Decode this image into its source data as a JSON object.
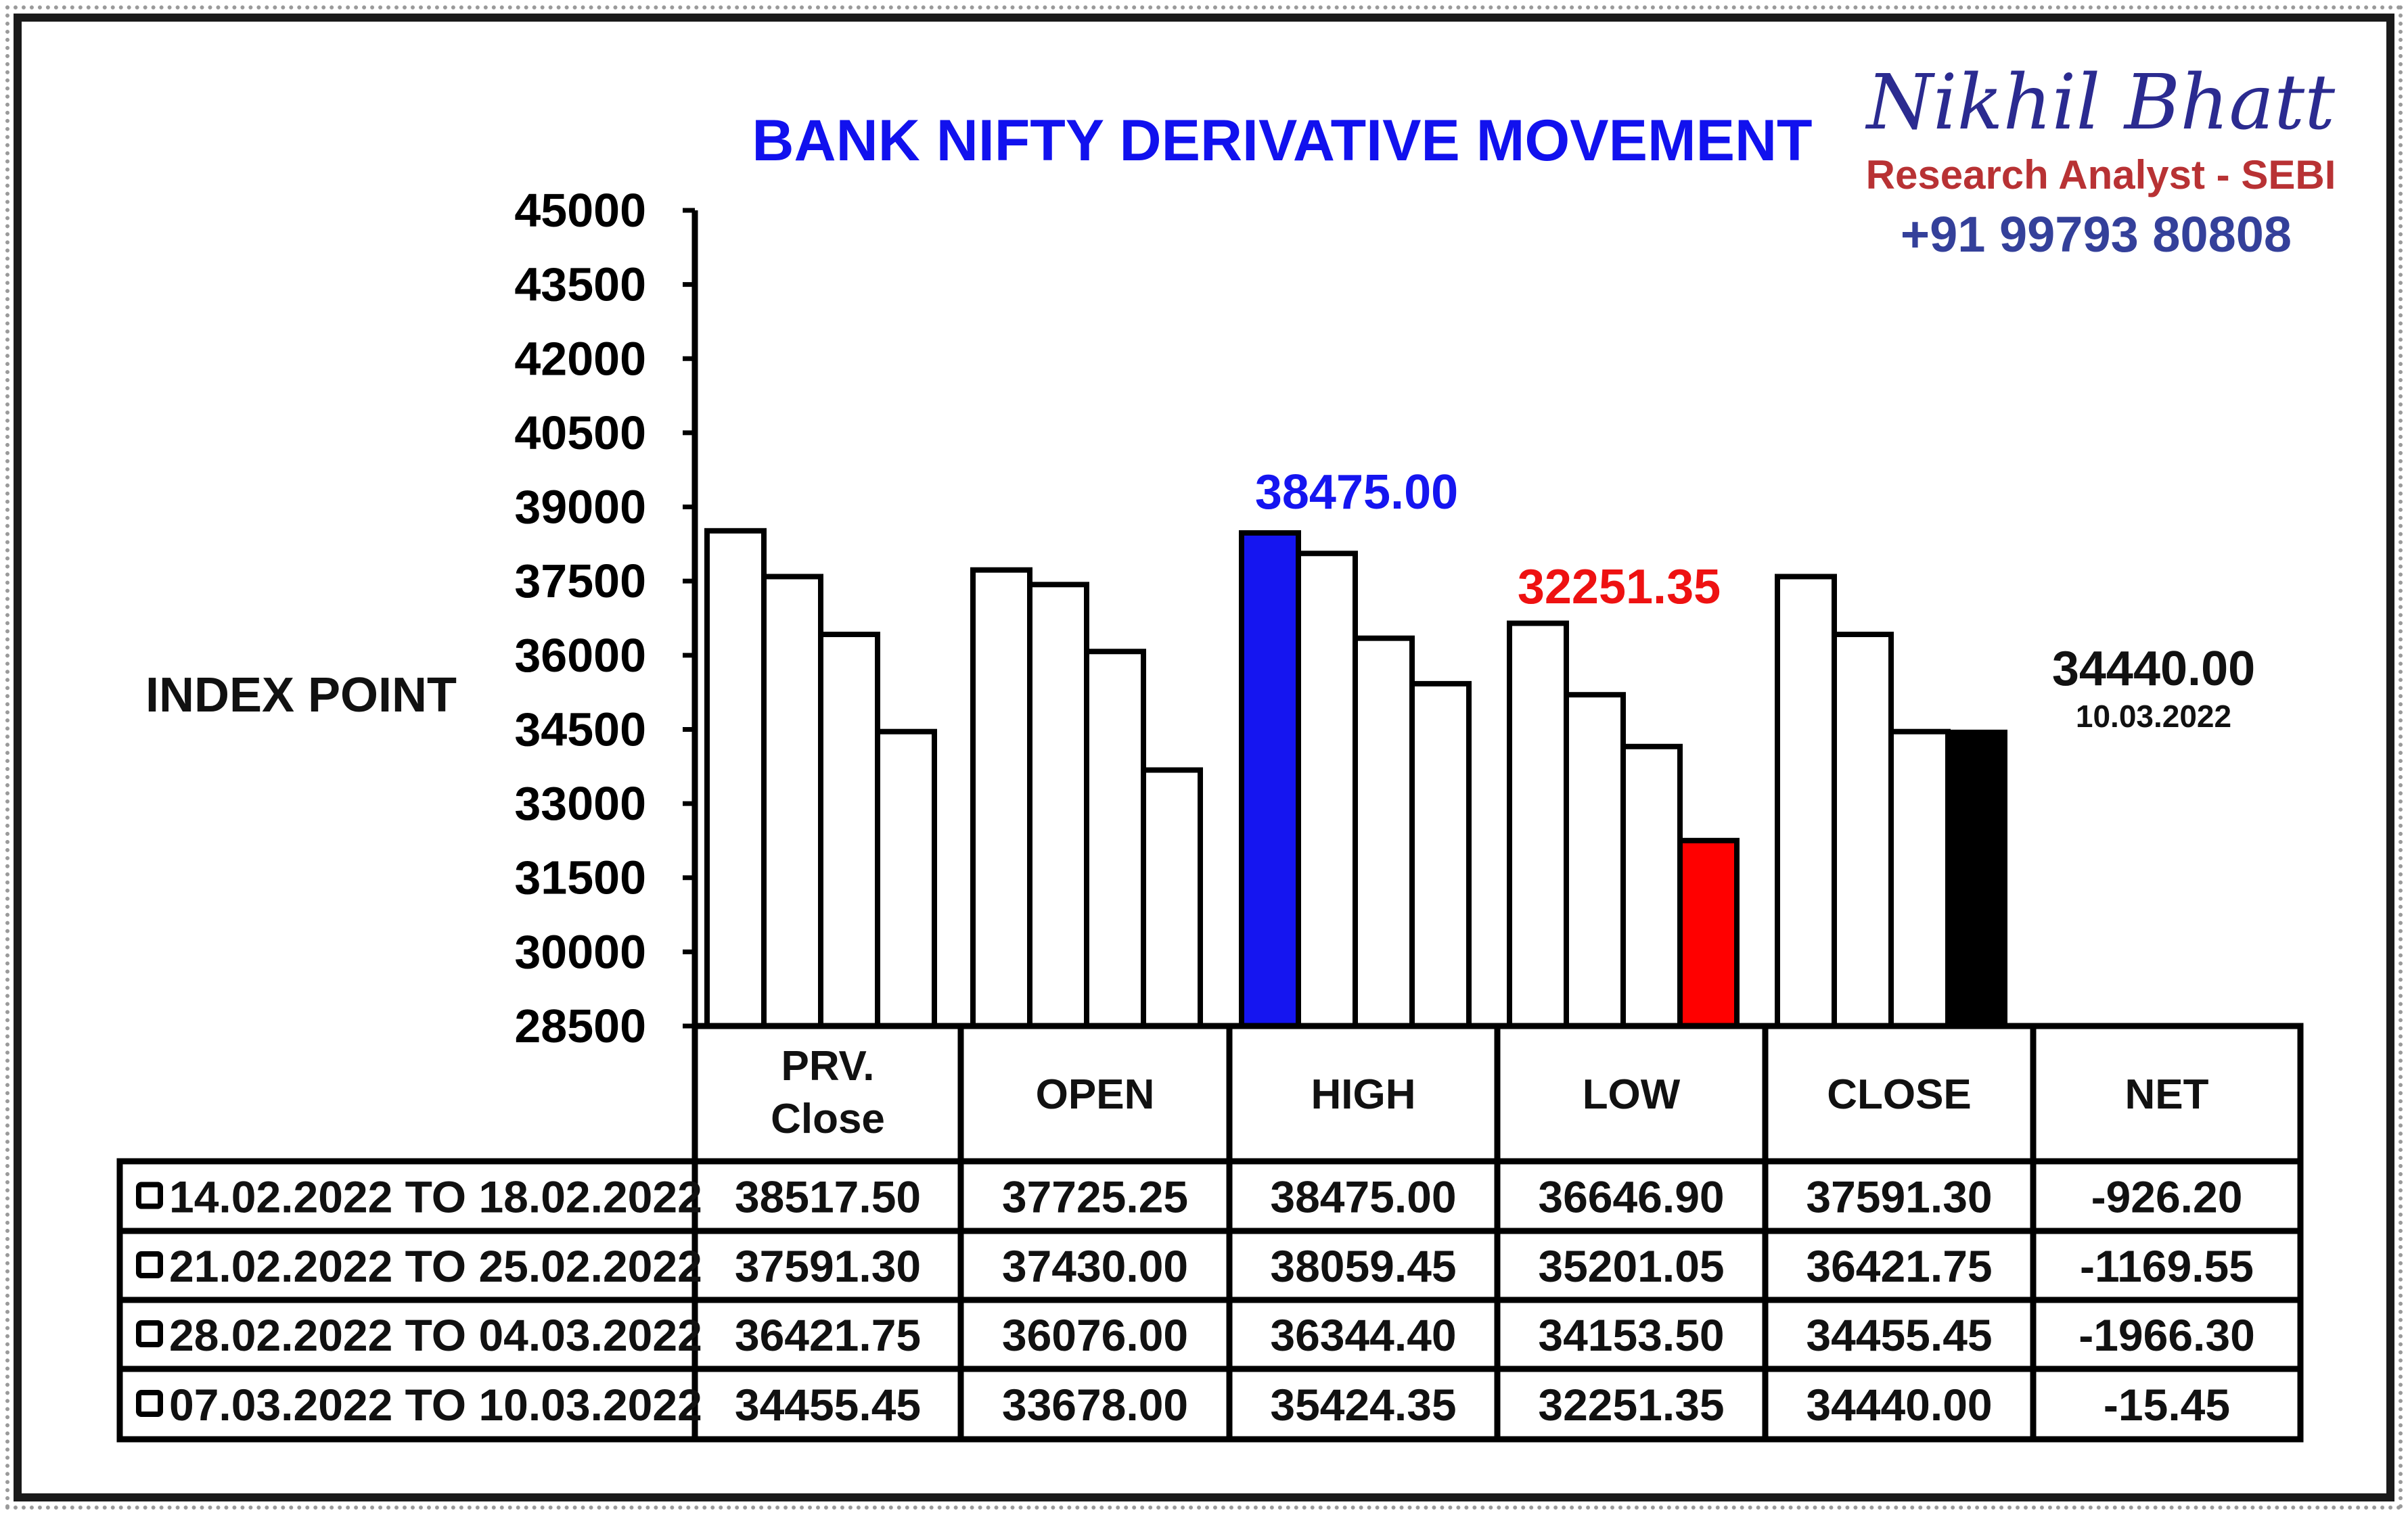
{
  "branding": {
    "name": "Nikhil Bhatt",
    "role": "Research Analyst - SEBI",
    "phone": "+91 99793 80808"
  },
  "chart_data": {
    "type": "bar",
    "title": "BANK NIFTY DERIVATIVE MOVEMENT",
    "ylabel": "INDEX POINT",
    "ylim": [
      28500,
      45000
    ],
    "yticks": [
      "45000",
      "43500",
      "42000",
      "40500",
      "39000",
      "37500",
      "36000",
      "34500",
      "33000",
      "31500",
      "30000",
      "28500"
    ],
    "grid": false,
    "categories": [
      "PRV. Close",
      "OPEN",
      "HIGH",
      "LOW",
      "CLOSE"
    ],
    "table_headers": [
      "PRV.\nClose",
      "OPEN",
      "HIGH",
      "LOW",
      "CLOSE",
      "NET"
    ],
    "series": [
      {
        "name": "14.02.2022 TO 18.02.2022",
        "values": [
          38517.5,
          37725.25,
          38475.0,
          36646.9,
          37591.3
        ],
        "net": -926.2,
        "cells": [
          "38517.50",
          "37725.25",
          "38475.00",
          "36646.90",
          "37591.30",
          "-926.20"
        ]
      },
      {
        "name": "21.02.2022 TO 25.02.2022",
        "values": [
          37591.3,
          37430.0,
          38059.45,
          35201.05,
          36421.75
        ],
        "net": -1169.55,
        "cells": [
          "37591.30",
          "37430.00",
          "38059.45",
          "35201.05",
          "36421.75",
          "-1169.55"
        ]
      },
      {
        "name": "28.02.2022 TO 04.03.2022",
        "values": [
          36421.75,
          36076.0,
          36344.4,
          34153.5,
          34455.45
        ],
        "net": -1966.3,
        "cells": [
          "36421.75",
          "36076.00",
          "36344.40",
          "34153.50",
          "34455.45",
          "-1966.30"
        ]
      },
      {
        "name": "07.03.2022 TO 10.03.2022",
        "values": [
          34455.45,
          33678.0,
          35424.35,
          32251.35,
          34440.0
        ],
        "net": -15.45,
        "cells": [
          "34455.45",
          "33678.00",
          "35424.35",
          "32251.35",
          "34440.00",
          "-15.45"
        ]
      }
    ],
    "highlights": [
      {
        "series": 0,
        "category": 2,
        "color": "#1515f0",
        "label": "38475.00",
        "label_color": "#1515f0"
      },
      {
        "series": 3,
        "category": 3,
        "color": "#ff0000",
        "label": "32251.35",
        "label_color": "#ee1111"
      },
      {
        "series": 3,
        "category": 4,
        "color": "#000000",
        "label": "34440.00",
        "label_color": "#111111",
        "sublabel": "10.03.2022"
      }
    ],
    "colors": {
      "title": "#1111ee",
      "default_bar": "#ffffff",
      "brand_name": "#2b2b90",
      "brand_role": "#b83234",
      "brand_phone": "#34409a"
    }
  }
}
